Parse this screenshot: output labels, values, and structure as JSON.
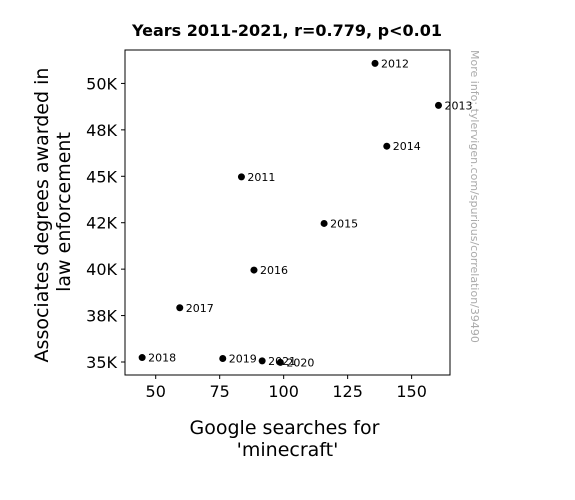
{
  "chart_data": {
    "type": "scatter",
    "title": "Years 2011-2021, r=0.779, p<0.01",
    "xlabel": [
      "Google searches for",
      "'minecraft'"
    ],
    "ylabel": [
      "Associates degrees awarded in",
      "law enforcement"
    ],
    "xlim": [
      38,
      165
    ],
    "ylim": [
      34300,
      51800
    ],
    "xticks": [
      50,
      75,
      100,
      125,
      150
    ],
    "xtick_labels": [
      "50",
      "75",
      "100",
      "125",
      "150"
    ],
    "yticks": [
      35000,
      37500,
      40000,
      42500,
      45000,
      47500,
      50000
    ],
    "ytick_labels": [
      "35K",
      "38K",
      "40K",
      "42K",
      "45K",
      "48K",
      "50K"
    ],
    "grid": false,
    "legend": "none",
    "points": [
      {
        "label": "2011",
        "x": 83.5,
        "y": 44970
      },
      {
        "label": "2012",
        "x": 135.7,
        "y": 51080
      },
      {
        "label": "2013",
        "x": 160.5,
        "y": 48820
      },
      {
        "label": "2014",
        "x": 140.3,
        "y": 46620
      },
      {
        "label": "2015",
        "x": 115.8,
        "y": 42460
      },
      {
        "label": "2016",
        "x": 88.4,
        "y": 39950
      },
      {
        "label": "2017",
        "x": 59.4,
        "y": 37920
      },
      {
        "label": "2018",
        "x": 44.7,
        "y": 35240
      },
      {
        "label": "2019",
        "x": 76.2,
        "y": 35190
      },
      {
        "label": "2020",
        "x": 98.7,
        "y": 34980
      },
      {
        "label": "2021",
        "x": 91.6,
        "y": 35060
      }
    ],
    "colors": {
      "point": "#000000",
      "watermark": "#aaaaaa"
    }
  },
  "watermark": "More info: tylervigen.com/spurious/correlation/39490"
}
